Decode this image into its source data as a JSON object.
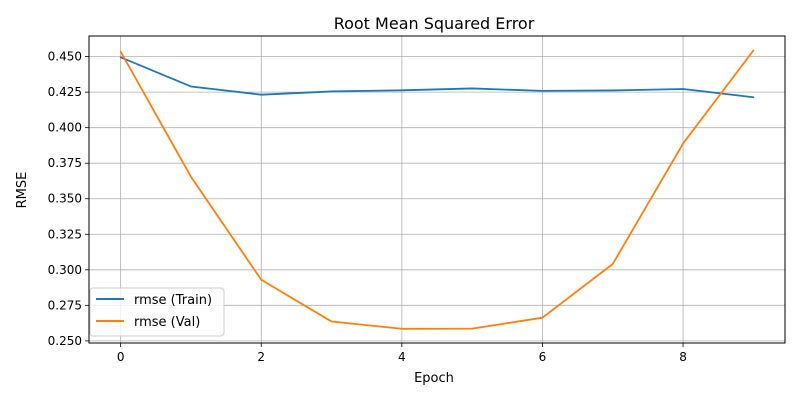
{
  "chart_data": {
    "type": "line",
    "title": "Root Mean Squared Error",
    "xlabel": "Epoch",
    "ylabel": "RMSE",
    "x": [
      0,
      1,
      2,
      3,
      4,
      5,
      6,
      7,
      8,
      9
    ],
    "xlim": [
      -0.45,
      9.45
    ],
    "ylim": [
      0.2485,
      0.4645
    ],
    "xticks": [
      0,
      2,
      4,
      6,
      8
    ],
    "yticks": [
      0.25,
      0.275,
      0.3,
      0.325,
      0.35,
      0.375,
      0.4,
      0.425,
      0.45
    ],
    "xtick_labels": [
      "0",
      "2",
      "4",
      "6",
      "8"
    ],
    "ytick_labels": [
      "0.250",
      "0.275",
      "0.300",
      "0.325",
      "0.350",
      "0.375",
      "0.400",
      "0.425",
      "0.450"
    ],
    "grid": true,
    "legend_position": "lower-left",
    "series": [
      {
        "name": "rmse (Train)",
        "color": "#1f77b4",
        "values": [
          0.4495,
          0.429,
          0.4232,
          0.4255,
          0.4263,
          0.4276,
          0.4259,
          0.4262,
          0.4272,
          0.4214
        ]
      },
      {
        "name": "rmse (Val)",
        "color": "#ff7f0e",
        "values": [
          0.4535,
          0.3655,
          0.293,
          0.2636,
          0.2585,
          0.2586,
          0.2663,
          0.3041,
          0.3888,
          0.4543
        ]
      }
    ]
  }
}
